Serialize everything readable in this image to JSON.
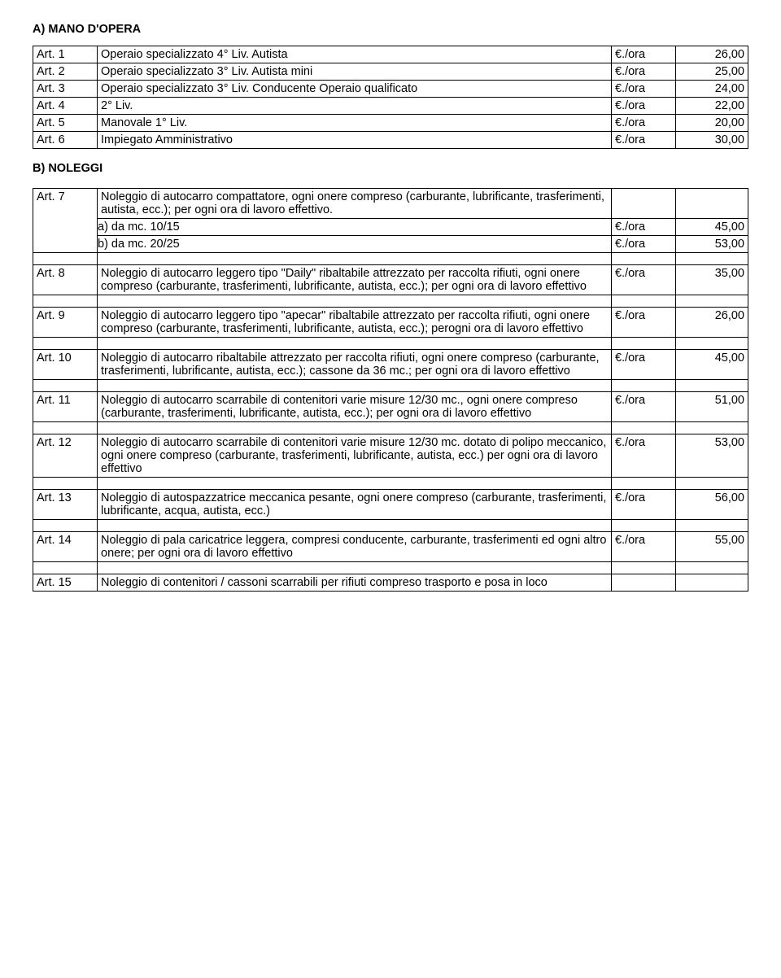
{
  "sectionA": {
    "title": "A) MANO D'OPERA",
    "rows": [
      {
        "art": "Art. 1",
        "desc": "Operaio specializzato 4° Liv. Autista",
        "unit": "€./ora",
        "price": "26,00"
      },
      {
        "art": "Art. 2",
        "desc": "Operaio specializzato 3° Liv. Autista mini",
        "unit": "€./ora",
        "price": "25,00"
      },
      {
        "art": "Art. 3",
        "desc": "Operaio specializzato 3° Liv. Conducente Operaio qualificato",
        "unit": "€./ora",
        "price": "24,00"
      },
      {
        "art": "Art. 4",
        "desc": "2° Liv.",
        "unit": "€./ora",
        "price": "22,00"
      },
      {
        "art": "Art. 5",
        "desc": "Manovale 1° Liv.",
        "unit": "€./ora",
        "price": "20,00"
      },
      {
        "art": "Art. 6",
        "desc": "Impiegato Amministrativo",
        "unit": "€./ora",
        "price": "30,00"
      }
    ]
  },
  "sectionB": {
    "title": "B) NOLEGGI",
    "rows": [
      {
        "art": "Art. 7",
        "desc": "Noleggio di autocarro compattatore, ogni onere compreso (carburante, lubrificante, trasferimenti, autista, ecc.); per ogni ora di lavoro effettivo.",
        "subs": [
          {
            "label": "a) da mc. 10/15",
            "unit": "€./ora",
            "price": "45,00"
          },
          {
            "label": "b) da mc. 20/25",
            "unit": "€./ora",
            "price": "53,00"
          }
        ]
      },
      {
        "art": "Art. 8",
        "desc": "Noleggio di autocarro leggero tipo \"Daily\" ribaltabile attrezzato per raccolta rifiuti, ogni onere compreso (carburante, trasferimenti, lubrificante, autista, ecc.); per ogni ora di lavoro effettivo",
        "unit": "€./ora",
        "price": "35,00"
      },
      {
        "art": "Art. 9",
        "desc": "Noleggio di autocarro leggero tipo \"apecar\" ribaltabile attrezzato per raccolta rifiuti, ogni onere compreso (carburante, trasferimenti, lubrificante, autista, ecc.); perogni ora di lavoro effettivo",
        "unit": "€./ora",
        "price": "26,00"
      },
      {
        "art": "Art. 10",
        "desc": "Noleggio di autocarro ribaltabile attrezzato per raccolta rifiuti, ogni onere compreso (carburante, trasferimenti, lubrificante, autista, ecc.); cassone da 36 mc.; per ogni ora di lavoro effettivo",
        "unit": "€./ora",
        "price": "45,00"
      },
      {
        "art": "Art. 11",
        "desc": "Noleggio di autocarro scarrabile di contenitori varie misure 12/30 mc., ogni onere compreso (carburante, trasferimenti, lubrificante, autista, ecc.); per ogni ora di lavoro effettivo",
        "unit": "€./ora",
        "price": "51,00"
      },
      {
        "art": "Art. 12",
        "desc": "Noleggio di autocarro scarrabile di contenitori varie misure 12/30 mc. dotato di polipo meccanico, ogni onere compreso (carburante, trasferimenti, lubrificante, autista, ecc.) per ogni ora di lavoro effettivo",
        "unit": "€./ora",
        "price": "53,00"
      },
      {
        "art": "Art. 13",
        "desc": "Noleggio di autospazzatrice meccanica pesante, ogni onere compreso (carburante, trasferimenti, lubrificante, acqua, autista, ecc.)",
        "unit": "€./ora",
        "price": "56,00"
      },
      {
        "art": "Art. 14",
        "desc": "Noleggio di pala caricatrice leggera, compresi conducente, carburante, trasferimenti ed ogni altro onere; per ogni ora di lavoro effettivo",
        "unit": "€./ora",
        "price": "55,00"
      },
      {
        "art": "Art. 15",
        "desc": "Noleggio di contenitori / cassoni scarrabili per rifiuti compreso trasporto e posa in loco",
        "unit": "",
        "price": ""
      }
    ]
  }
}
